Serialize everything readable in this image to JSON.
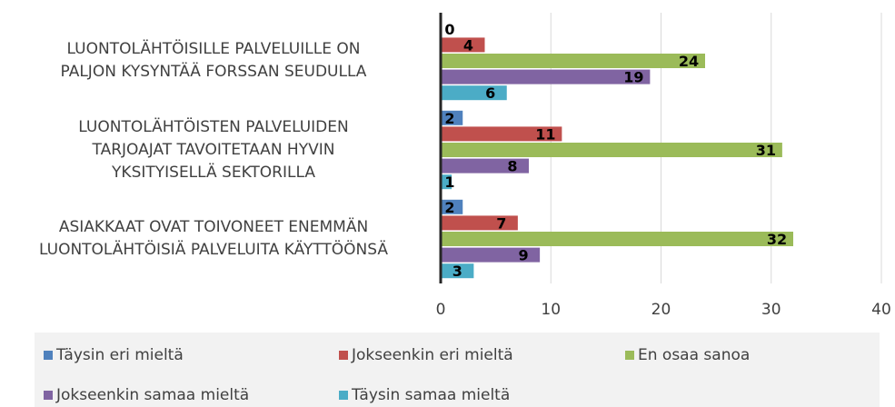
{
  "chart_data": {
    "type": "barh",
    "categories": [
      "LUONTOLÄHTÖISILLE PALVELUILLE ON\nPALJON KYSYNTÄÄ FORSSAN SEUDULLA",
      "LUONTOLÄHTÖISTEN PALVELUIDEN\nTARJOAJAT TAVOITETAAN HYVIN\nYKSITYISELLÄ SEKTORILLA",
      "ASIAKKAAT OVAT TOIVONEET ENEMMÄN\nLUONTOLÄHTÖISIÄ PALVELUITA KÄYTTÖÖNSÄ"
    ],
    "series": [
      {
        "name": "Täysin eri mieltä",
        "color": "#4f81bd",
        "values": [
          0,
          2,
          2
        ]
      },
      {
        "name": "Jokseenkin eri mieltä",
        "color": "#c0504d",
        "values": [
          4,
          11,
          7
        ]
      },
      {
        "name": "En osaa sanoa",
        "color": "#9bbb59",
        "values": [
          24,
          31,
          32
        ]
      },
      {
        "name": "Jokseenkin samaa mieltä",
        "color": "#8064a2",
        "values": [
          19,
          8,
          9
        ]
      },
      {
        "name": "Täysin samaa mieltä",
        "color": "#4bacc6",
        "values": [
          6,
          1,
          3
        ]
      }
    ],
    "xlim": [
      0,
      40
    ],
    "xticks": [
      0,
      10,
      20,
      30,
      40
    ],
    "grid": true,
    "legend": "bottom"
  }
}
